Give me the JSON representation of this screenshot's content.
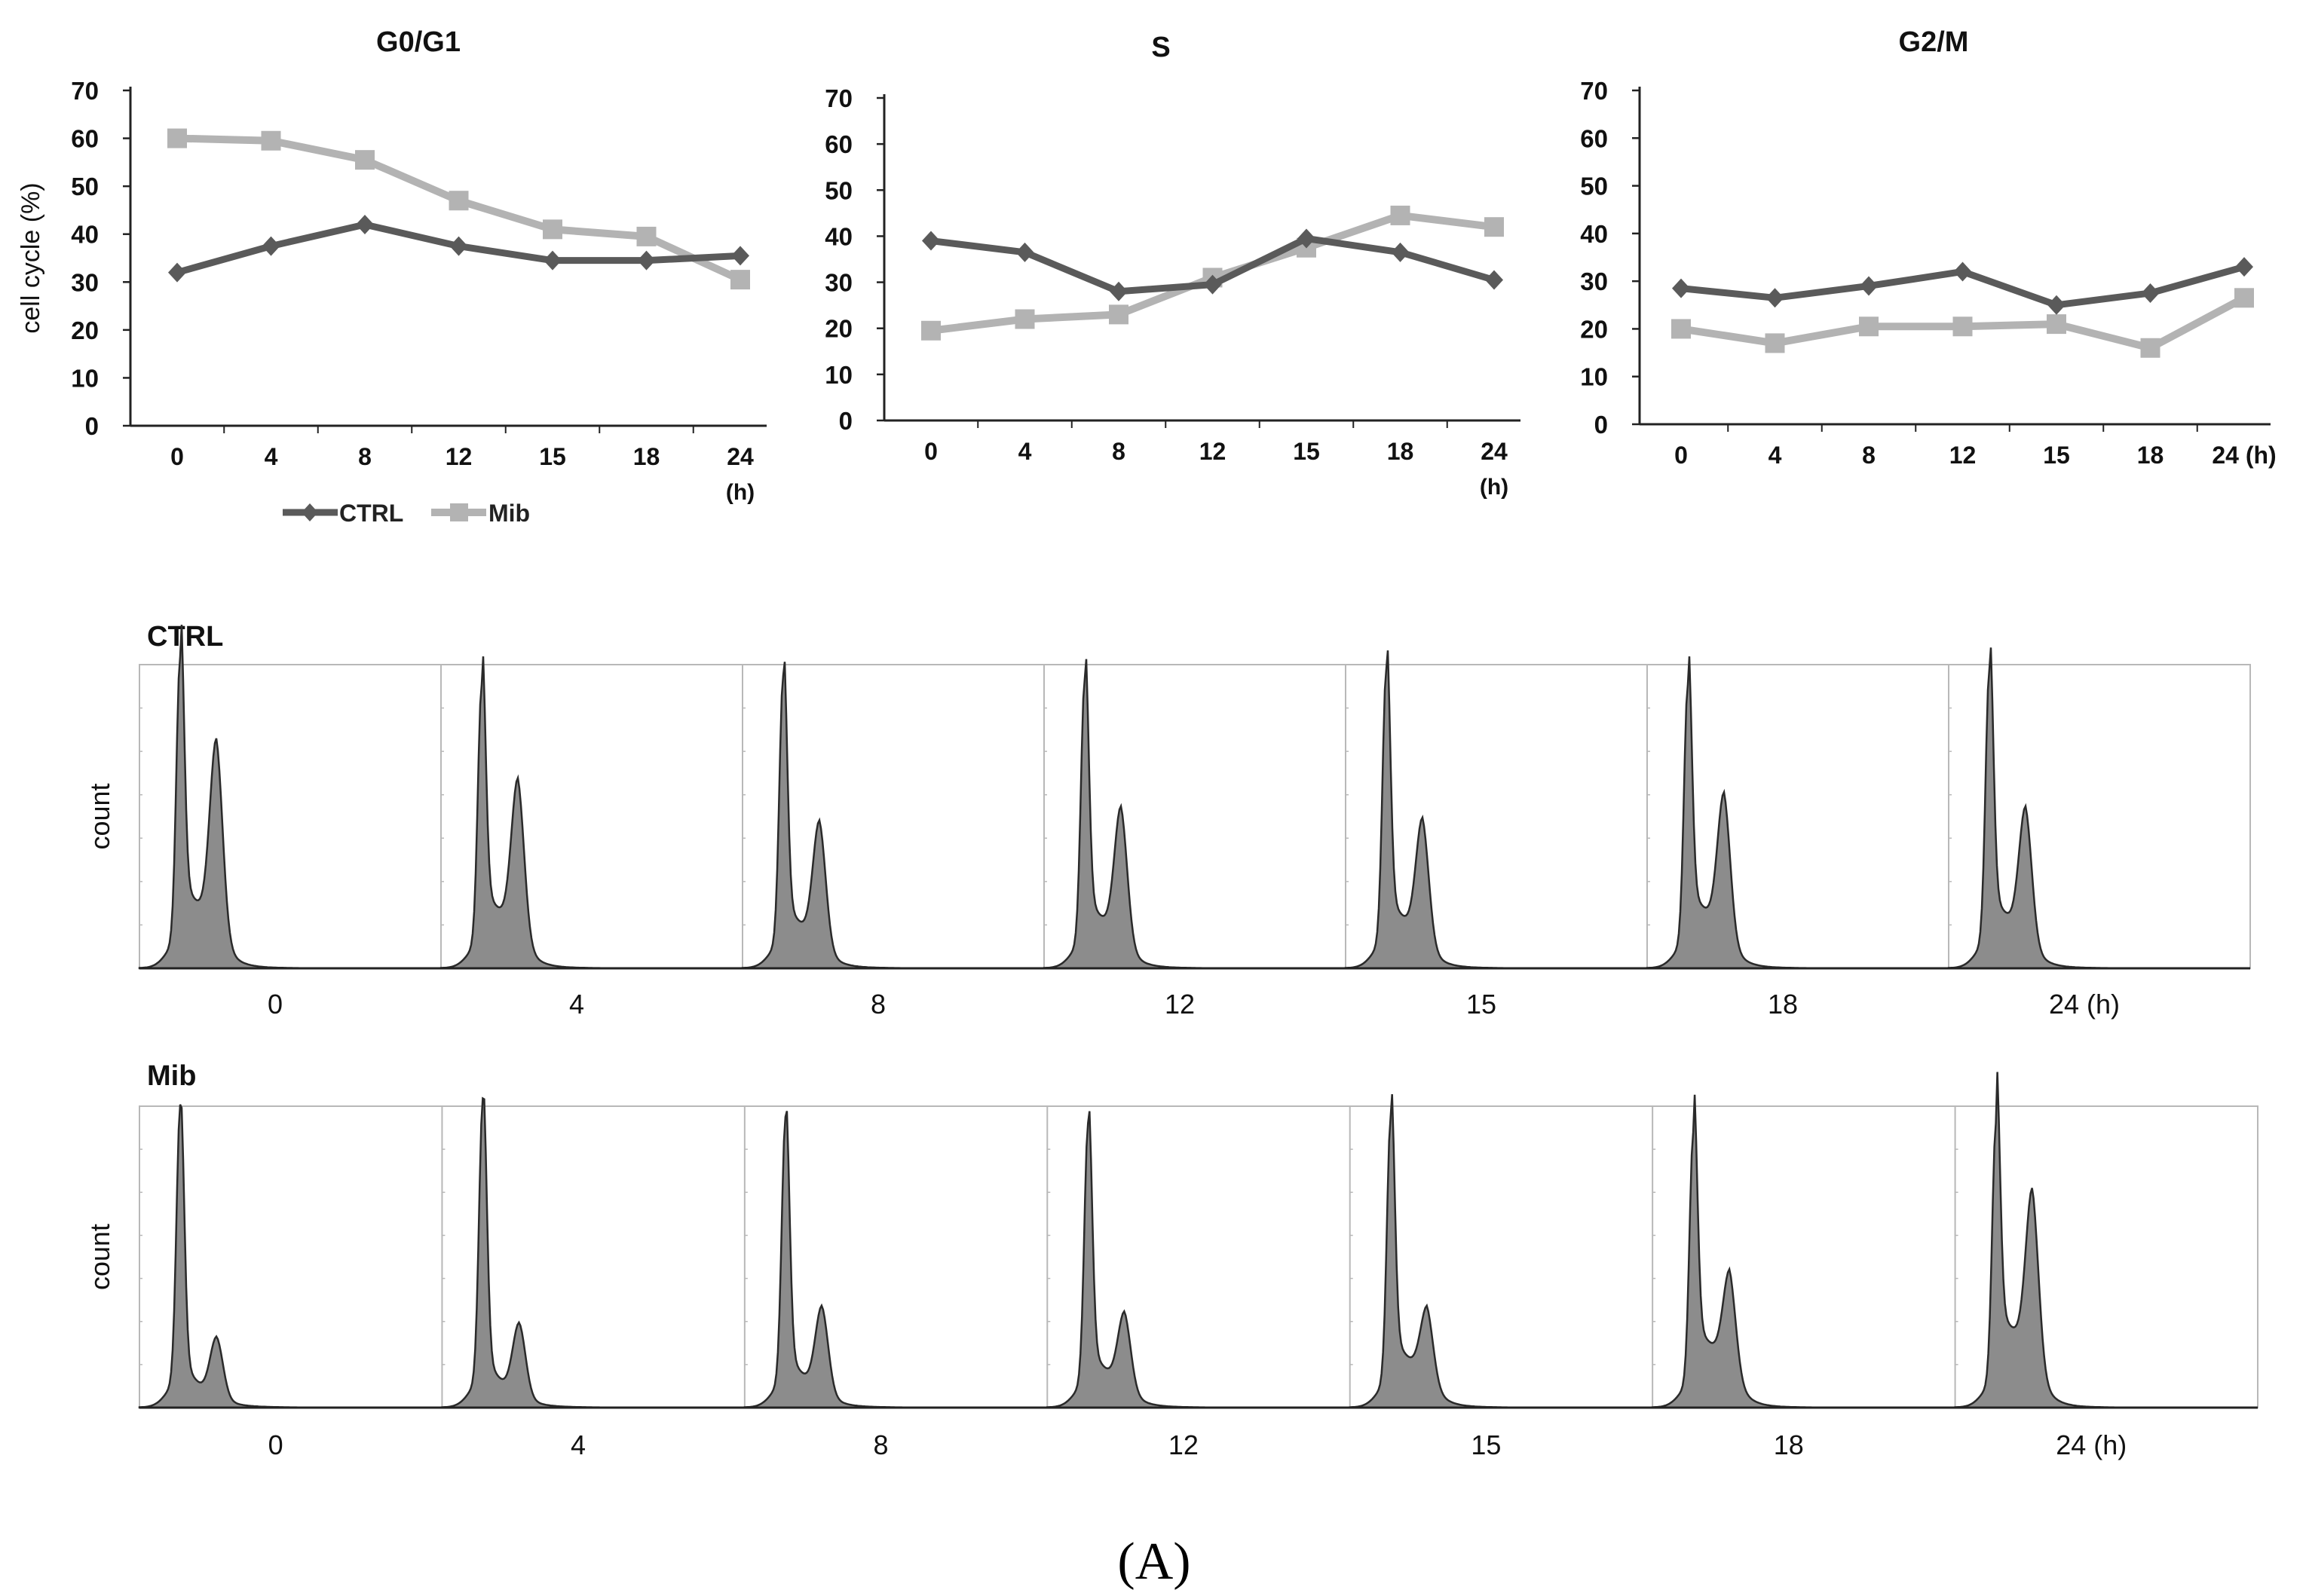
{
  "figure": {
    "panel_label": "(A)",
    "colors": {
      "ctrl": "#5a5a5a",
      "mib": "#b3b3b3",
      "axis": "#222222",
      "hist_fill": "#8c8c8c",
      "hist_line": "#2a2a2a",
      "hist_box": "#b8b8b8"
    }
  },
  "chart_data": [
    {
      "type": "line",
      "title": "G0/G1",
      "ylabel": "cell cycle (%)",
      "xlabel": "(h)",
      "categories": [
        "0",
        "4",
        "8",
        "12",
        "15",
        "18",
        "24"
      ],
      "last_tick_label": "24",
      "ylim": [
        0,
        70
      ],
      "yticks": [
        "0",
        "10",
        "20",
        "30",
        "40",
        "50",
        "60",
        "70"
      ],
      "series": [
        {
          "name": "CTRL",
          "marker": "diamond",
          "values": [
            32,
            37.5,
            42,
            37.5,
            34.5,
            34.5,
            35.5
          ]
        },
        {
          "name": "Mib",
          "marker": "square",
          "values": [
            60,
            59.5,
            55.5,
            47,
            41,
            39.5,
            30.5
          ]
        }
      ],
      "legend": {
        "placement": "bottom-center",
        "entries": [
          "CTRL",
          "Mib"
        ]
      }
    },
    {
      "type": "line",
      "title": "S",
      "ylabel": "",
      "xlabel": "(h)",
      "categories": [
        "0",
        "4",
        "8",
        "12",
        "15",
        "18",
        "24"
      ],
      "last_tick_label": "24",
      "ylim": [
        0,
        70
      ],
      "yticks": [
        "0",
        "10",
        "20",
        "30",
        "40",
        "50",
        "60",
        "70"
      ],
      "series": [
        {
          "name": "CTRL",
          "marker": "diamond",
          "values": [
            39,
            36.5,
            28,
            29.5,
            39.5,
            36.5,
            30.5
          ]
        },
        {
          "name": "Mib",
          "marker": "square",
          "values": [
            19.5,
            22,
            23,
            31,
            37.5,
            44.5,
            42
          ]
        }
      ]
    },
    {
      "type": "line",
      "title": "G2/M",
      "ylabel": "",
      "xlabel": "(h)",
      "categories": [
        "0",
        "4",
        "8",
        "12",
        "15",
        "18",
        "24"
      ],
      "last_tick_label": "24 (h)",
      "ylim": [
        0,
        70
      ],
      "yticks": [
        "0",
        "10",
        "20",
        "30",
        "40",
        "50",
        "60",
        "70"
      ],
      "series": [
        {
          "name": "CTRL",
          "marker": "diamond",
          "values": [
            28.5,
            26.5,
            29,
            32,
            25,
            27.5,
            33
          ]
        },
        {
          "name": "Mib",
          "marker": "square",
          "values": [
            20,
            17,
            20.5,
            20.5,
            21,
            16,
            26.5
          ]
        }
      ]
    },
    {
      "type": "histogram",
      "title": "CTRL",
      "ylabel": "count",
      "panels": [
        "0",
        "4",
        "8",
        "12",
        "15",
        "18",
        "24 (h)"
      ],
      "g1_peak": [
        1.0,
        0.91,
        0.94,
        0.93,
        0.96,
        0.91,
        0.96
      ],
      "g2_peak": [
        0.61,
        0.49,
        0.39,
        0.42,
        0.38,
        0.44,
        0.41
      ],
      "s_plateau": [
        0.19,
        0.17,
        0.12,
        0.14,
        0.14,
        0.17,
        0.15
      ]
    },
    {
      "type": "histogram",
      "title": "Mib",
      "ylabel": "count",
      "panels": [
        "0",
        "4",
        "8",
        "12",
        "15",
        "18",
        "24 (h)"
      ],
      "g1_peak": [
        0.98,
        1.0,
        0.94,
        0.92,
        0.94,
        0.89,
        0.92
      ],
      "g2_peak": [
        0.19,
        0.23,
        0.27,
        0.23,
        0.21,
        0.29,
        0.53
      ],
      "s_plateau": [
        0.05,
        0.06,
        0.08,
        0.1,
        0.14,
        0.19,
        0.24
      ]
    }
  ]
}
